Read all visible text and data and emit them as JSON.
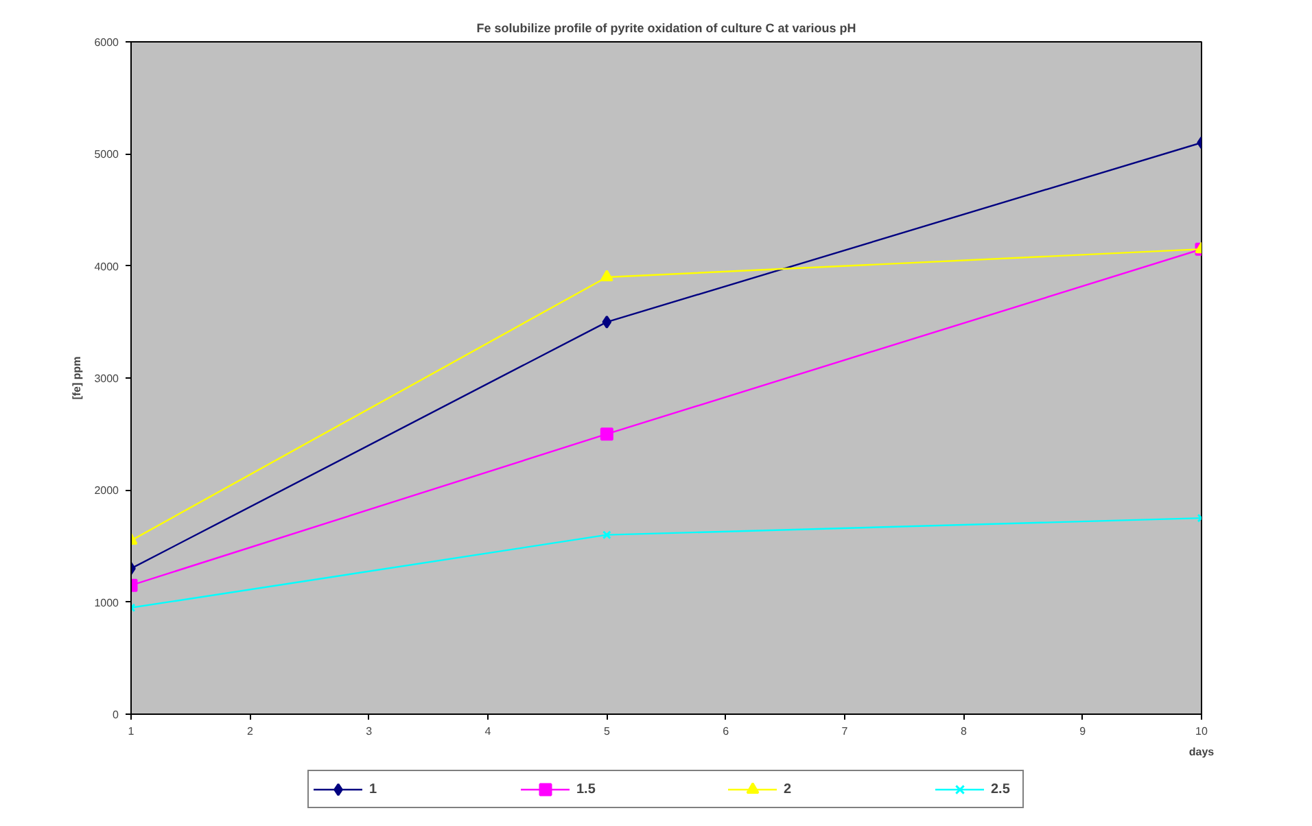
{
  "chart_data": {
    "type": "line",
    "title": "Fe solubilize profile of pyrite oxidation of culture C at various pH",
    "xlabel": "days",
    "ylabel": "[fe] ppm",
    "x": [
      1,
      5,
      10
    ],
    "xlim": [
      1,
      10
    ],
    "xticks": [
      1,
      2,
      3,
      4,
      5,
      6,
      7,
      8,
      9,
      10
    ],
    "ylim": [
      0,
      6000
    ],
    "yticks": [
      0,
      1000,
      2000,
      3000,
      4000,
      5000,
      6000
    ],
    "grid": false,
    "legend": "bottom",
    "line_style": "solid",
    "series": [
      {
        "name": "1",
        "color": "#000080",
        "marker": "diamond",
        "values": [
          1300,
          3500,
          5100
        ]
      },
      {
        "name": "1.5",
        "color": "#ff00ff",
        "marker": "square",
        "values": [
          1150,
          2500,
          4150
        ]
      },
      {
        "name": "2",
        "color": "#ffff00",
        "marker": "triangle",
        "values": [
          1550,
          3900,
          4150
        ]
      },
      {
        "name": "2.5",
        "color": "#00ffff",
        "marker": "cross",
        "values": [
          950,
          1600,
          1750
        ]
      }
    ]
  }
}
